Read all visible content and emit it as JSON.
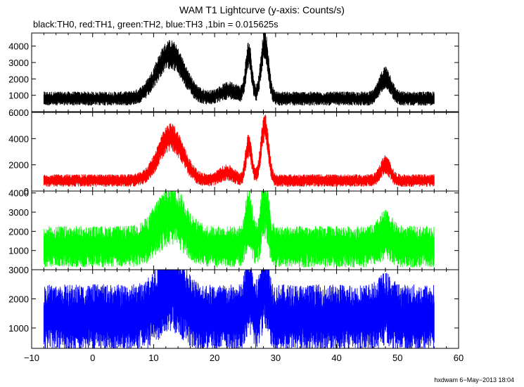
{
  "chart_data": {
    "type": "line",
    "title": "WAM T1 Lightcurve (y-axis: Counts/s)",
    "subtitle": "black:TH0, red:TH1, green:TH2, blue:TH3 ,1bin = 0.015625s",
    "x_ticks": [
      "−10",
      "0",
      "10",
      "20",
      "30",
      "40",
      "50",
      "60"
    ],
    "xlim": [
      -10,
      60
    ],
    "data_x_range": [
      -8,
      56
    ],
    "panels": [
      {
        "color": "#000000",
        "ylim": [
          0,
          4800
        ],
        "y_ticks": [
          1000,
          2000,
          3000,
          4000
        ],
        "y_tick_labels": [
          "1000",
          "2000",
          "3000",
          "4000"
        ],
        "baseline": 800,
        "noise": 180,
        "peaks": [
          {
            "x": 12.7,
            "height": 2700,
            "width": 2.2
          },
          {
            "x": 22.5,
            "height": 500,
            "width": 1.5
          },
          {
            "x": 25.6,
            "height": 2600,
            "width": 0.5
          },
          {
            "x": 28.2,
            "height": 3300,
            "width": 0.6
          },
          {
            "x": 48.0,
            "height": 1300,
            "width": 0.9
          }
        ]
      },
      {
        "color": "#ff0000",
        "ylim": [
          0,
          6000
        ],
        "y_ticks": [
          0,
          2000,
          4000,
          6000
        ],
        "y_tick_labels": [
          "0",
          "2000",
          "4000",
          "6000"
        ],
        "baseline": 800,
        "noise": 200,
        "peaks": [
          {
            "x": 12.8,
            "height": 3300,
            "width": 2.0
          },
          {
            "x": 22.0,
            "height": 600,
            "width": 1.2
          },
          {
            "x": 25.6,
            "height": 2700,
            "width": 0.5
          },
          {
            "x": 28.2,
            "height": 4100,
            "width": 0.6
          },
          {
            "x": 48.0,
            "height": 1200,
            "width": 0.8
          }
        ]
      },
      {
        "color": "#00ff00",
        "ylim": [
          0,
          4100
        ],
        "y_ticks": [
          1000,
          2000,
          3000,
          4000
        ],
        "y_tick_labels": [
          "1000",
          "2000",
          "3000",
          "4000"
        ],
        "baseline": 1200,
        "noise": 450,
        "peaks": [
          {
            "x": 12.8,
            "height": 1700,
            "width": 2.2
          },
          {
            "x": 25.6,
            "height": 1600,
            "width": 0.5
          },
          {
            "x": 28.2,
            "height": 2100,
            "width": 0.6
          },
          {
            "x": 48.0,
            "height": 600,
            "width": 1.0
          }
        ]
      },
      {
        "color": "#0000ff",
        "ylim": [
          300,
          3000
        ],
        "y_ticks": [
          1000,
          2000,
          3000
        ],
        "y_tick_labels": [
          "1000",
          "2000",
          "3000"
        ],
        "baseline": 1350,
        "noise": 480,
        "peaks": [
          {
            "x": 12.8,
            "height": 1000,
            "width": 2.0
          },
          {
            "x": 25.6,
            "height": 900,
            "width": 0.5
          },
          {
            "x": 28.2,
            "height": 1100,
            "width": 0.6
          },
          {
            "x": 48.0,
            "height": 300,
            "width": 1.0
          }
        ]
      }
    ]
  },
  "footer": "hxdwam  6−May−2013 18:04"
}
